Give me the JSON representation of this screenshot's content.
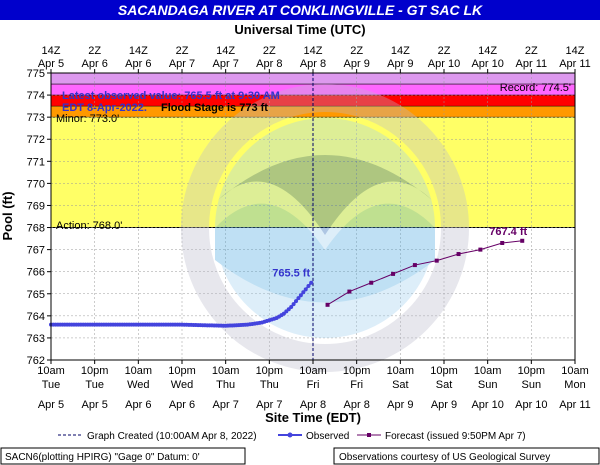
{
  "title": "SACANDAGA RIVER AT CONKLINGVILLE - GT SAC LK",
  "top_axis_title": "Universal Time (UTC)",
  "bottom_axis_title": "Site Time (EDT)",
  "y_axis_title": "Pool (ft)",
  "colors": {
    "title_bg": "#0000cc",
    "title_fg": "#ffffff",
    "observed": "#4444dd",
    "forecast": "#660066",
    "record_band": "#dd99ee",
    "major_band": "#ff66ff",
    "moderate_band": "#ff0000",
    "minor_band": "#ff9900",
    "action_band": "#ffff66"
  },
  "annotation": {
    "line1": "Latest observed value: 765.5 ft at 9:30 AM",
    "line2a": "EDT 8-Apr-2022.",
    "line2b": "Flood Stage is 773 ft"
  },
  "thresholds": {
    "record_label": "Record: 774.5'",
    "minor_label": "Minor: 773.0'",
    "action_label": "Action: 768.0'"
  },
  "legend": {
    "graph_created": "Graph Created (10:00AM Apr 8, 2022)",
    "observed": "Observed",
    "forecast": "Forecast (issued 9:50PM Apr 7)"
  },
  "footer": {
    "left": "SACN6(plotting HPIRG) \"Gage 0\" Datum:  0'",
    "right": "Observations courtesy of US Geological Survey"
  },
  "chart_data": {
    "type": "line",
    "title": "SACANDAGA RIVER AT CONKLINGVILLE - GT SAC LK",
    "xlabel": "Site Time (EDT)",
    "x2label": "Universal Time (UTC)",
    "ylabel": "Pool (ft)",
    "x_range_hours": [
      0,
      144
    ],
    "x_origin": "10am Apr 5 (EDT)",
    "ylim": [
      762,
      775
    ],
    "yticks": [
      762,
      763,
      764,
      765,
      766,
      767,
      768,
      769,
      770,
      771,
      772,
      773,
      774,
      775
    ],
    "bottom_ticks": [
      {
        "t": "10am",
        "d": "Tue",
        "l": "Apr 5"
      },
      {
        "t": "10pm",
        "d": "Tue",
        "l": "Apr 5"
      },
      {
        "t": "10am",
        "d": "Wed",
        "l": "Apr 6"
      },
      {
        "t": "10pm",
        "d": "Wed",
        "l": "Apr 6"
      },
      {
        "t": "10am",
        "d": "Thu",
        "l": "Apr 7"
      },
      {
        "t": "10pm",
        "d": "Thu",
        "l": "Apr 7"
      },
      {
        "t": "10am",
        "d": "Fri",
        "l": "Apr 8"
      },
      {
        "t": "10pm",
        "d": "Fri",
        "l": "Apr 8"
      },
      {
        "t": "10am",
        "d": "Sat",
        "l": "Apr 9"
      },
      {
        "t": "10pm",
        "d": "Sat",
        "l": "Apr 9"
      },
      {
        "t": "10am",
        "d": "Sun",
        "l": "Apr 10"
      },
      {
        "t": "10pm",
        "d": "Sun",
        "l": "Apr 10"
      },
      {
        "t": "10am",
        "d": "Mon",
        "l": "Apr 11"
      }
    ],
    "top_ticks": [
      {
        "t": "14Z",
        "l": "Apr 5"
      },
      {
        "t": "2Z",
        "l": "Apr 6"
      },
      {
        "t": "14Z",
        "l": "Apr 6"
      },
      {
        "t": "2Z",
        "l": "Apr 7"
      },
      {
        "t": "14Z",
        "l": "Apr 7"
      },
      {
        "t": "2Z",
        "l": "Apr 8"
      },
      {
        "t": "14Z",
        "l": "Apr 8"
      },
      {
        "t": "2Z",
        "l": "Apr 9"
      },
      {
        "t": "14Z",
        "l": "Apr 9"
      },
      {
        "t": "2Z",
        "l": "Apr 10"
      },
      {
        "t": "14Z",
        "l": "Apr 10"
      },
      {
        "t": "2Z",
        "l": "Apr 11"
      },
      {
        "t": "14Z",
        "l": "Apr 11"
      }
    ],
    "bands": [
      {
        "name": "record",
        "from": 774.5,
        "to": 775,
        "color": "#dd99ee"
      },
      {
        "name": "major",
        "from": 774,
        "to": 774.5,
        "color": "#ff66ff"
      },
      {
        "name": "moderate",
        "from": 773.5,
        "to": 774,
        "color": "#ff0000"
      },
      {
        "name": "minor",
        "from": 773,
        "to": 773.5,
        "color": "#ff9900"
      },
      {
        "name": "action",
        "from": 768,
        "to": 773,
        "color": "#ffff66"
      }
    ],
    "graph_created_hours": 72,
    "observed": {
      "name": "Observed",
      "points": [
        [
          0,
          763.6
        ],
        [
          12,
          763.6
        ],
        [
          24,
          763.6
        ],
        [
          36,
          763.6
        ],
        [
          48,
          763.55
        ],
        [
          54,
          763.6
        ],
        [
          58,
          763.7
        ],
        [
          62,
          763.9
        ],
        [
          64,
          764.1
        ],
        [
          66,
          764.4
        ],
        [
          68,
          764.8
        ],
        [
          70,
          765.2
        ],
        [
          71.5,
          765.5
        ]
      ],
      "label": "765.5 ft"
    },
    "forecast": {
      "name": "Forecast (issued 9:50PM Apr 7)",
      "points": [
        [
          76,
          764.5
        ],
        [
          82,
          765.1
        ],
        [
          88,
          765.5
        ],
        [
          94,
          765.9
        ],
        [
          100,
          766.3
        ],
        [
          106,
          766.5
        ],
        [
          112,
          766.8
        ],
        [
          118,
          767.0
        ],
        [
          124,
          767.3
        ],
        [
          129.5,
          767.4
        ]
      ],
      "label": "767.4 ft"
    }
  }
}
